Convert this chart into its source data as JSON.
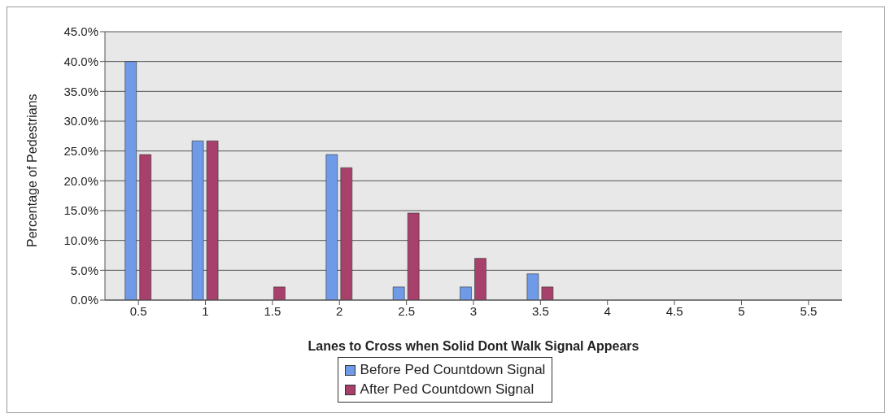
{
  "chart_data": {
    "type": "bar",
    "xlabel": "Lanes to Cross when Solid Dont Walk Signal Appears",
    "ylabel": "Percentage of Pedestrians",
    "categories": [
      "0.5",
      "1",
      "1.5",
      "2",
      "2.5",
      "3",
      "3.5",
      "4",
      "4.5",
      "5",
      "5.5"
    ],
    "series": [
      {
        "name": "Before Ped Countdown Signal",
        "color": "#6f9ae8",
        "values": [
          40.0,
          26.7,
          0,
          24.4,
          2.2,
          2.2,
          4.4,
          0,
          0,
          0,
          0
        ]
      },
      {
        "name": "After Ped Countdown Signal",
        "color": "#a8406c",
        "values": [
          24.4,
          26.7,
          2.2,
          22.2,
          14.6,
          7.0,
          2.2,
          0,
          0,
          0,
          0
        ]
      }
    ],
    "ylim": [
      0,
      45
    ],
    "yticks": [
      {
        "value": 0,
        "label": "0.0%"
      },
      {
        "value": 5,
        "label": "5.0%"
      },
      {
        "value": 10,
        "label": "10.0%"
      },
      {
        "value": 15,
        "label": "15.0%"
      },
      {
        "value": 20,
        "label": "20.0%"
      },
      {
        "value": 25,
        "label": "25.0%"
      },
      {
        "value": 30,
        "label": "30.0%"
      },
      {
        "value": 35,
        "label": "35.0%"
      },
      {
        "value": 40,
        "label": "40.0%"
      },
      {
        "value": 45,
        "label": "45.0%"
      }
    ],
    "grid": "y",
    "legend": "bottom"
  }
}
